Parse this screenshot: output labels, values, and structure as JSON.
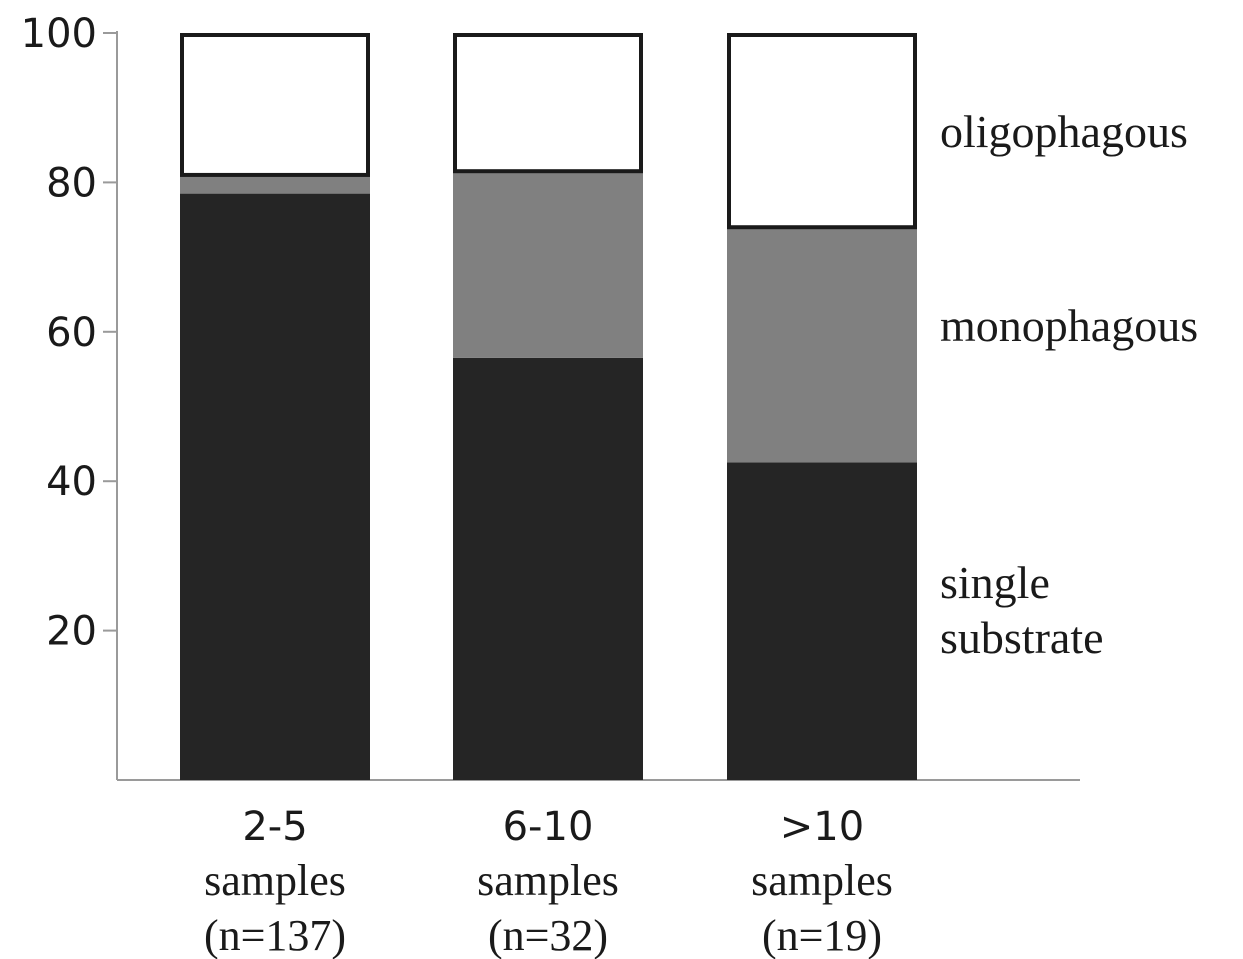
{
  "chart_data": {
    "type": "bar",
    "stacked": true,
    "categories": [
      [
        "2-5",
        "samples",
        "(n=137)"
      ],
      [
        "6-10",
        "samples",
        "(n=32)"
      ],
      [
        ">10",
        "samples",
        "(n=19)"
      ]
    ],
    "series": [
      {
        "name": "single substrate",
        "legend_lines": [
          "single",
          "substrate"
        ],
        "color": "#252525",
        "values": [
          78.5,
          56.5,
          42.5
        ]
      },
      {
        "name": "monophagous",
        "legend_lines": [
          "monophagous"
        ],
        "color": "#808080",
        "values": [
          2.5,
          25,
          31.5
        ]
      },
      {
        "name": "oligophagous",
        "legend_lines": [
          "oligophagous"
        ],
        "color": "#ffffff",
        "values": [
          19,
          18.5,
          26
        ]
      }
    ],
    "ylim": [
      0,
      100
    ],
    "yticks": [
      20,
      40,
      60,
      80,
      100
    ],
    "xlabel": "",
    "ylabel": "",
    "title": "",
    "grid": false,
    "legend_position": "right, labels beside bar segments"
  }
}
